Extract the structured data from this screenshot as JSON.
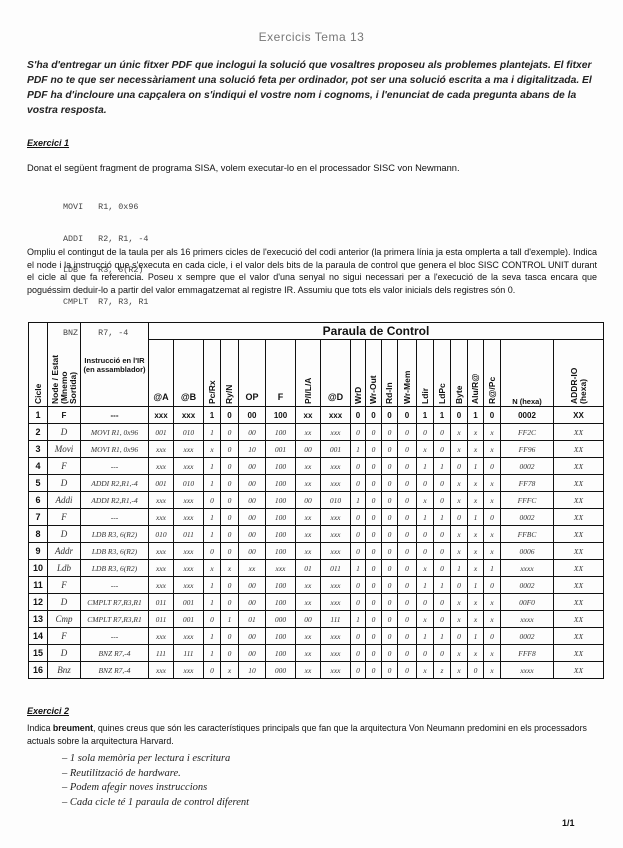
{
  "title": "Exercicis Tema 13",
  "intro": "S'ha d'entregar un únic fitxer PDF que inclogui la solució que vosaltres proposeu als problemes plantejats. El fitxer PDF no te que ser necessàriament una solució feta per ordinador, pot ser una solució escrita a ma i digitalitzada. El PDF ha d'incloure una capçalera on s'indiqui el vostre nom i cognoms, i l'enunciat de cada pregunta abans de la vostra resposta.",
  "exercise1": {
    "heading": "Exercici 1",
    "text": "Donat el següent fragment de programa SISA, volem executar-lo en el processador SISC von Newmann.",
    "code": [
      "MOVI   R1, 0x96",
      "ADDI   R2, R1, -4",
      "LDB    R3, 6(R2)",
      "CMPLT  R7, R3, R1",
      "BNZ    R7, -4"
    ],
    "instructions": "Ompliu el contingut de la taula per als 16 primers cicles de l'execució del codi anterior (la primera línia ja esta omplerta a tall d'exemple). Indica el node i la instrucció que s'executa en cada cicle, i el valor dels bits de la paraula de control que genera el bloc SISC CONTROL UNIT durant el cicle al que fa referencia. Poseu x sempre que el valor d'una senyal no sigui necessari per a l'execució de la seva tasca encara que poguéssim deduir-lo a partir del valor emmagatzemat al registre IR. Assumiu que tots els valor inicials dels registres són 0."
  },
  "table": {
    "group_header": "Paraula de Control",
    "headers": [
      "Cicle",
      "Node / Estat (Mnemo Sortida)",
      "Instrucció en l'IR (en assamblador)",
      "@A",
      "@B",
      "Pc/Rx",
      "Ry/N",
      "OP",
      "F",
      "P/I/L/A",
      "@D",
      "WrD",
      "Wr-Out",
      "Rd-In",
      "Wr-Mem",
      "Ldir",
      "LdPc",
      "Byte",
      "Alu/R@",
      "R@/Pc",
      "N (hexa)",
      "ADDR-IO (hexa)"
    ],
    "rows": [
      [
        "1",
        "F",
        "---",
        "xxx",
        "xxx",
        "1",
        "0",
        "00",
        "100",
        "xx",
        "xxx",
        "0",
        "0",
        "0",
        "0",
        "1",
        "1",
        "0",
        "1",
        "0",
        "0002",
        "XX"
      ],
      [
        "2",
        "D",
        "MOVI R1, 0x96",
        "001",
        "010",
        "1",
        "0",
        "00",
        "100",
        "xx",
        "xxx",
        "0",
        "0",
        "0",
        "0",
        "0",
        "0",
        "x",
        "x",
        "x",
        "FF2C",
        "XX"
      ],
      [
        "3",
        "Movi",
        "MOVI R1, 0x96",
        "xxx",
        "xxx",
        "x",
        "0",
        "10",
        "001",
        "00",
        "001",
        "1",
        "0",
        "0",
        "0",
        "x",
        "0",
        "x",
        "x",
        "x",
        "FF96",
        "XX"
      ],
      [
        "4",
        "F",
        "---",
        "xxx",
        "xxx",
        "1",
        "0",
        "00",
        "100",
        "xx",
        "xxx",
        "0",
        "0",
        "0",
        "0",
        "1",
        "1",
        "0",
        "1",
        "0",
        "0002",
        "XX"
      ],
      [
        "5",
        "D",
        "ADDI R2,R1,-4",
        "001",
        "010",
        "1",
        "0",
        "00",
        "100",
        "xx",
        "xxx",
        "0",
        "0",
        "0",
        "0",
        "0",
        "0",
        "x",
        "x",
        "x",
        "FF78",
        "XX"
      ],
      [
        "6",
        "Addi",
        "ADDI R2,R1,-4",
        "xxx",
        "xxx",
        "0",
        "0",
        "00",
        "100",
        "00",
        "010",
        "1",
        "0",
        "0",
        "0",
        "x",
        "0",
        "x",
        "x",
        "x",
        "FFFC",
        "XX"
      ],
      [
        "7",
        "F",
        "---",
        "xxx",
        "xxx",
        "1",
        "0",
        "00",
        "100",
        "xx",
        "xxx",
        "0",
        "0",
        "0",
        "0",
        "1",
        "1",
        "0",
        "1",
        "0",
        "0002",
        "XX"
      ],
      [
        "8",
        "D",
        "LDB R3, 6(R2)",
        "010",
        "011",
        "1",
        "0",
        "00",
        "100",
        "xx",
        "xxx",
        "0",
        "0",
        "0",
        "0",
        "0",
        "0",
        "x",
        "x",
        "x",
        "FFBC",
        "XX"
      ],
      [
        "9",
        "Addr",
        "LDB R3, 6(R2)",
        "xxx",
        "xxx",
        "0",
        "0",
        "00",
        "100",
        "xx",
        "xxx",
        "0",
        "0",
        "0",
        "0",
        "0",
        "0",
        "x",
        "x",
        "x",
        "0006",
        "XX"
      ],
      [
        "10",
        "Ldb",
        "LDB R3, 6(R2)",
        "xxx",
        "xxx",
        "x",
        "x",
        "xx",
        "xxx",
        "01",
        "011",
        "1",
        "0",
        "0",
        "0",
        "x",
        "0",
        "1",
        "x",
        "1",
        "xxxx",
        "XX"
      ],
      [
        "11",
        "F",
        "---",
        "xxx",
        "xxx",
        "1",
        "0",
        "00",
        "100",
        "xx",
        "xxx",
        "0",
        "0",
        "0",
        "0",
        "1",
        "1",
        "0",
        "1",
        "0",
        "0002",
        "XX"
      ],
      [
        "12",
        "D",
        "CMPLT R7,R3,R1",
        "011",
        "001",
        "1",
        "0",
        "00",
        "100",
        "xx",
        "xxx",
        "0",
        "0",
        "0",
        "0",
        "0",
        "0",
        "x",
        "x",
        "x",
        "00F0",
        "XX"
      ],
      [
        "13",
        "Cmp",
        "CMPLT R7,R3,R1",
        "011",
        "001",
        "0",
        "1",
        "01",
        "000",
        "00",
        "111",
        "1",
        "0",
        "0",
        "0",
        "x",
        "0",
        "x",
        "x",
        "x",
        "xxxx",
        "XX"
      ],
      [
        "14",
        "F",
        "---",
        "xxx",
        "xxx",
        "1",
        "0",
        "00",
        "100",
        "xx",
        "xxx",
        "0",
        "0",
        "0",
        "0",
        "1",
        "1",
        "0",
        "1",
        "0",
        "0002",
        "XX"
      ],
      [
        "15",
        "D",
        "BNZ R7,-4",
        "111",
        "111",
        "1",
        "0",
        "00",
        "100",
        "xx",
        "xxx",
        "0",
        "0",
        "0",
        "0",
        "0",
        "0",
        "x",
        "x",
        "x",
        "FFF8",
        "XX"
      ],
      [
        "16",
        "Bnz",
        "BNZ R7,-4",
        "xxx",
        "xxx",
        "0",
        "x",
        "10",
        "000",
        "xx",
        "xxx",
        "0",
        "0",
        "0",
        "0",
        "x",
        "z",
        "x",
        "0",
        "x",
        "xxxx",
        "XX"
      ]
    ]
  },
  "exercise2": {
    "heading": "Exercici 2",
    "text_before": "Indica ",
    "text_bold": "breument",
    "text_after": ", quines creus que són les característiques principals que fan que la arquitectura Von Neumann predomini en els processadors actuals sobre la arquitectura Harvard.",
    "answers": [
      "– 1 sola memòria per lectura i escritura",
      "– Reutilització de hardware.",
      "– Podem afegir noves instruccions",
      "– Cada cicle té 1 paraula de control diferent"
    ]
  },
  "page_number": "1/1"
}
